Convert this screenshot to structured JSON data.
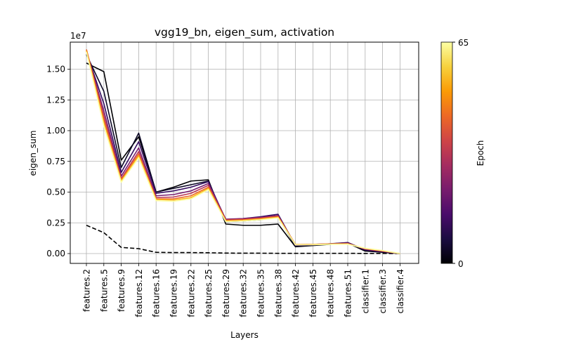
{
  "chart_data": {
    "type": "line",
    "title": "vgg19_bn, eigen_sum, activation",
    "xlabel": "Layers",
    "ylabel": "eigen_sum",
    "y_offset_label": "1e7",
    "ylim": [
      -0.08,
      1.72
    ],
    "yticks": [
      0.0,
      0.25,
      0.5,
      0.75,
      1.0,
      1.25,
      1.5
    ],
    "ytick_labels": [
      "0.00",
      "0.25",
      "0.50",
      "0.75",
      "1.00",
      "1.25",
      "1.50"
    ],
    "grid": true,
    "categories": [
      "features.2",
      "features.5",
      "features.9",
      "features.12",
      "features.16",
      "features.19",
      "features.22",
      "features.25",
      "features.29",
      "features.32",
      "features.35",
      "features.38",
      "features.42",
      "features.45",
      "features.48",
      "features.51",
      "classifier.1",
      "classifier.3",
      "classifier.4"
    ],
    "series": [
      {
        "epoch": 0,
        "style": "dashed",
        "color": "#000000",
        "values": [
          0.23,
          0.17,
          0.05,
          0.04,
          0.01,
          0.008,
          0.008,
          0.007,
          0.004,
          0.003,
          0.003,
          0.002,
          0.002,
          0.002,
          0.002,
          0.002,
          0.001,
          0.001,
          0.0
        ]
      },
      {
        "epoch": 1,
        "style": "solid",
        "color": "#000004",
        "values": [
          1.55,
          1.48,
          0.76,
          0.95,
          0.5,
          0.54,
          0.59,
          0.6,
          0.24,
          0.23,
          0.23,
          0.24,
          0.055,
          0.065,
          0.075,
          0.085,
          0.02,
          0.01,
          0.0
        ]
      },
      {
        "epoch": 4,
        "style": "solid",
        "color": "#0c0826",
        "values": [
          1.62,
          1.32,
          0.7,
          0.98,
          0.5,
          0.53,
          0.56,
          0.59,
          0.26,
          0.265,
          0.275,
          0.3,
          0.06,
          0.068,
          0.078,
          0.088,
          0.025,
          0.012,
          0.0
        ]
      },
      {
        "epoch": 10,
        "style": "solid",
        "color": "#320a5e",
        "values": [
          1.64,
          1.22,
          0.66,
          0.91,
          0.49,
          0.51,
          0.54,
          0.585,
          0.275,
          0.285,
          0.3,
          0.32,
          0.065,
          0.07,
          0.08,
          0.09,
          0.03,
          0.015,
          0.0
        ]
      },
      {
        "epoch": 20,
        "style": "solid",
        "color": "#781c6d",
        "values": [
          1.65,
          1.16,
          0.63,
          0.86,
          0.47,
          0.48,
          0.51,
          0.57,
          0.28,
          0.285,
          0.295,
          0.31,
          0.07,
          0.075,
          0.08,
          0.085,
          0.035,
          0.018,
          0.0
        ]
      },
      {
        "epoch": 32,
        "style": "solid",
        "color": "#bc3754",
        "values": [
          1.66,
          1.12,
          0.61,
          0.83,
          0.455,
          0.46,
          0.49,
          0.555,
          0.275,
          0.28,
          0.29,
          0.305,
          0.072,
          0.075,
          0.078,
          0.082,
          0.038,
          0.02,
          0.0
        ]
      },
      {
        "epoch": 45,
        "style": "solid",
        "color": "#ed6925",
        "values": [
          1.66,
          1.09,
          0.6,
          0.81,
          0.445,
          0.445,
          0.47,
          0.54,
          0.27,
          0.275,
          0.285,
          0.3,
          0.073,
          0.075,
          0.078,
          0.08,
          0.04,
          0.022,
          0.0
        ]
      },
      {
        "epoch": 55,
        "style": "solid",
        "color": "#fbb61a",
        "values": [
          1.65,
          1.06,
          0.59,
          0.795,
          0.44,
          0.435,
          0.455,
          0.53,
          0.265,
          0.27,
          0.28,
          0.295,
          0.072,
          0.074,
          0.077,
          0.078,
          0.042,
          0.024,
          0.0
        ]
      },
      {
        "epoch": 65,
        "style": "solid",
        "color": "#fcffa4",
        "values": [
          1.64,
          1.04,
          0.58,
          0.78,
          0.43,
          0.425,
          0.445,
          0.52,
          0.26,
          0.265,
          0.275,
          0.29,
          0.07,
          0.072,
          0.075,
          0.076,
          0.043,
          0.025,
          0.0
        ]
      }
    ],
    "colorbar": {
      "label": "Epoch",
      "min_label": "0",
      "max_label": "65",
      "colormap": "inferno",
      "stops": [
        "#000004",
        "#1b0c41",
        "#4a0c6b",
        "#781c6d",
        "#a52c60",
        "#cf4446",
        "#ed6925",
        "#fb9b06",
        "#f7d13d",
        "#fcffa4"
      ]
    }
  }
}
